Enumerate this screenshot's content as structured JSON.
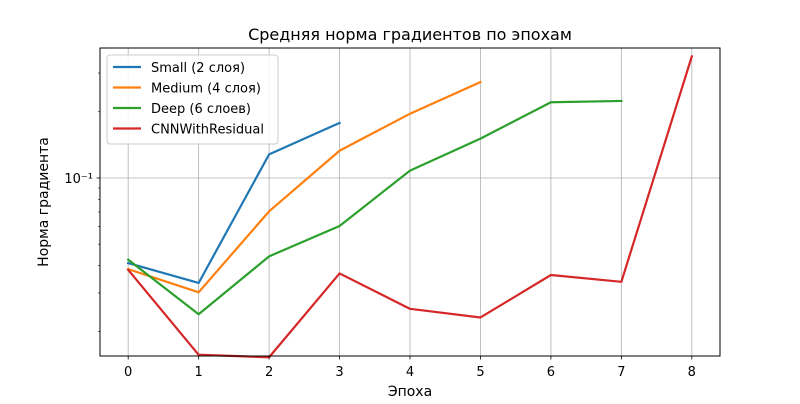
{
  "chart_data": {
    "type": "line",
    "title": "Средняя норма градиентов по эпохам",
    "xlabel": "Эпоха",
    "ylabel": "Норма градиента",
    "yscale": "log",
    "xlim": [
      -0.4,
      8.4
    ],
    "ylim": [
      0.0155,
      0.39
    ],
    "x_ticks": [
      0,
      1,
      2,
      3,
      4,
      5,
      6,
      7,
      8
    ],
    "x_tick_labels": [
      "0",
      "1",
      "2",
      "3",
      "4",
      "5",
      "6",
      "7",
      "8"
    ],
    "y_ticks": [
      0.1
    ],
    "y_tick_labels": [
      "10⁻¹"
    ],
    "grid": true,
    "legend_position": "top-left",
    "series": [
      {
        "name": "Small (2 слоя)",
        "color": "#1f77b4",
        "x": [
          0,
          1,
          2,
          3
        ],
        "values": [
          0.041,
          0.0333,
          0.128,
          0.178
        ]
      },
      {
        "name": "Medium (4 слоя)",
        "color": "#ff7f0e",
        "x": [
          0,
          1,
          2,
          3,
          4,
          5
        ],
        "values": [
          0.0385,
          0.0302,
          0.0705,
          0.133,
          0.196,
          0.273
        ]
      },
      {
        "name": "Deep (6 слоев)",
        "color": "#2ca02c",
        "x": [
          0,
          1,
          2,
          3,
          4,
          5,
          6,
          7
        ],
        "values": [
          0.0425,
          0.024,
          0.044,
          0.0605,
          0.108,
          0.151,
          0.221,
          0.224
        ]
      },
      {
        "name": "CNNWithResidual",
        "color": "#d62728",
        "x": [
          0,
          1,
          2,
          3,
          4,
          5,
          6,
          7,
          8
        ],
        "values": [
          0.0382,
          0.0157,
          0.0153,
          0.0368,
          0.0254,
          0.0232,
          0.0362,
          0.0337,
          0.357
        ]
      }
    ]
  }
}
